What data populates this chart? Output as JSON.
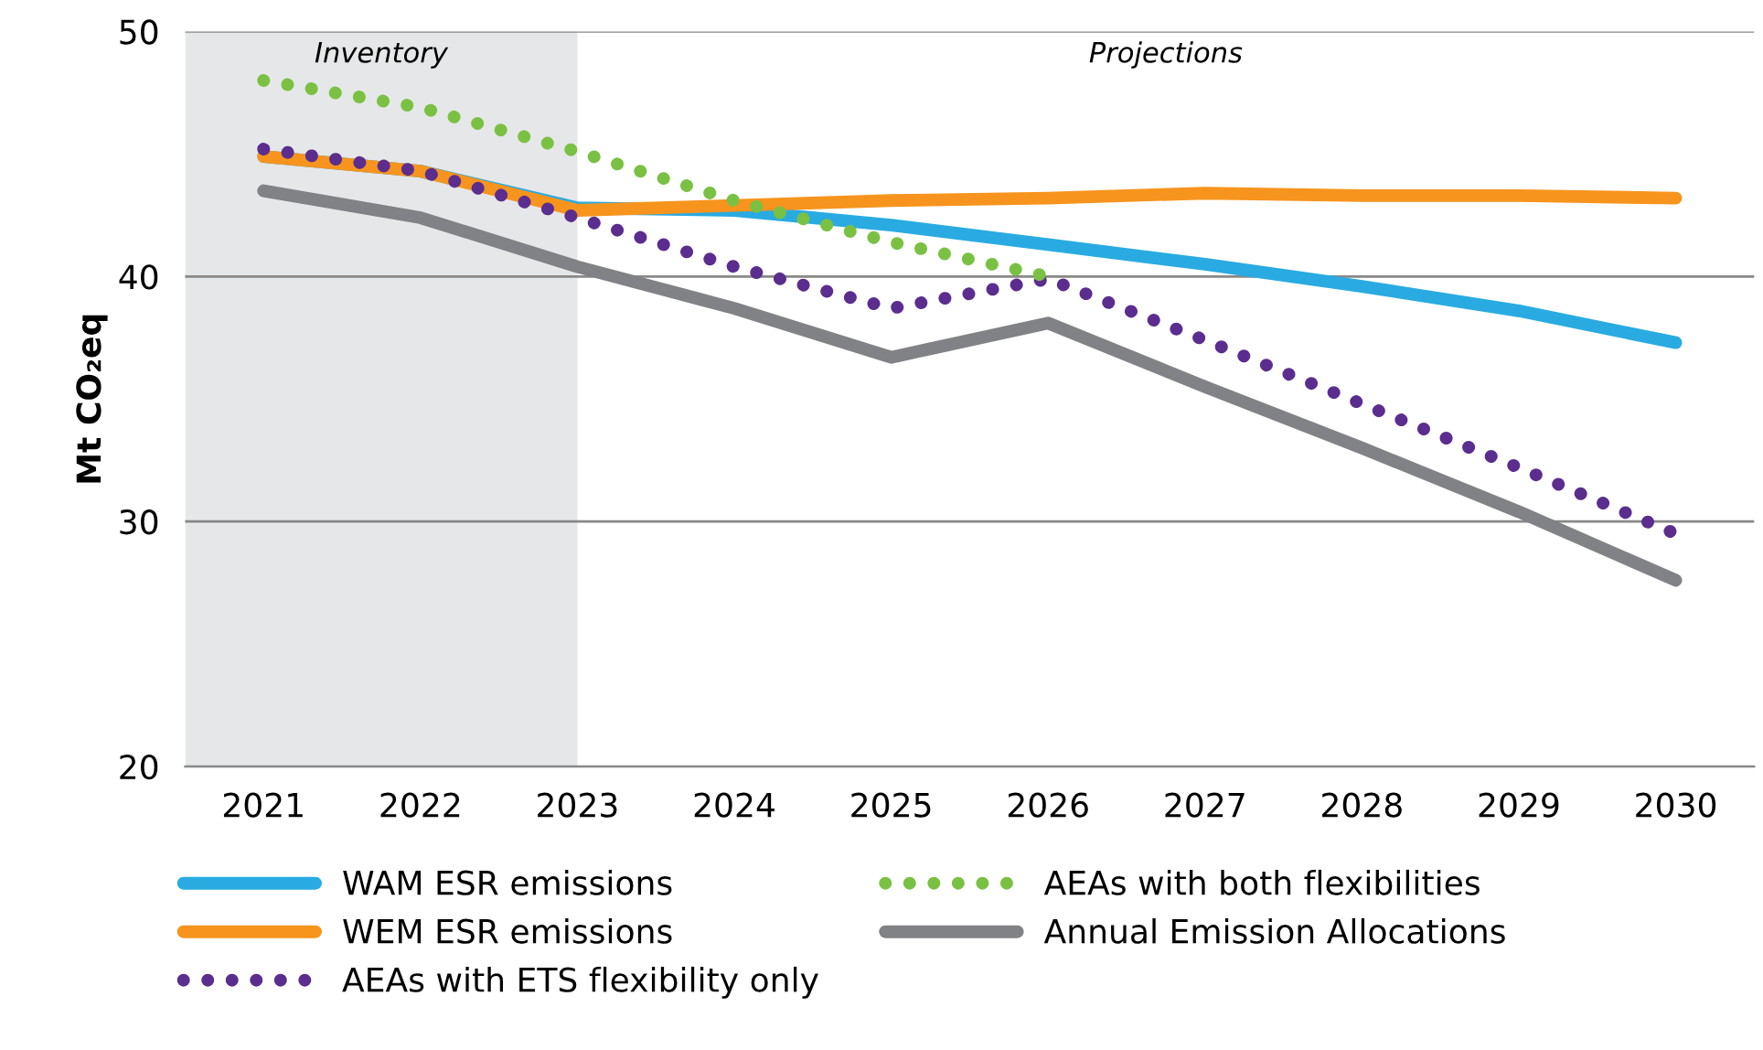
{
  "chart_data": {
    "type": "line",
    "ylabel": "Mt CO₂eq",
    "x": [
      2021,
      2022,
      2023,
      2024,
      2025,
      2026,
      2027,
      2028,
      2029,
      2030
    ],
    "xlim": [
      2020.5,
      2030.5
    ],
    "xticks": [
      2021,
      2022,
      2023,
      2024,
      2025,
      2026,
      2027,
      2028,
      2029,
      2030
    ],
    "ylim": [
      20,
      50
    ],
    "yticks": [
      20,
      30,
      40,
      50
    ],
    "grid": "y",
    "legend": "bottom",
    "bands": [
      {
        "axis": "x",
        "from": 2020.5,
        "to": 2023,
        "label": "Inventory",
        "color": "#e6e7e8"
      }
    ],
    "annotations": [
      "Projections"
    ],
    "series": [
      {
        "name": "WAM ESR emissions",
        "color": "#29abe2",
        "line_style": "solid",
        "values": [
          44.9,
          44.3,
          42.8,
          42.7,
          42.1,
          41.3,
          40.5,
          39.6,
          38.6,
          37.3
        ]
      },
      {
        "name": "WEM ESR emissions",
        "color": "#f7941d",
        "line_style": "solid",
        "values": [
          44.9,
          44.3,
          42.7,
          42.9,
          43.1,
          43.2,
          43.4,
          43.3,
          43.3,
          43.2
        ]
      },
      {
        "name": "AEAs with ETS flexibility only",
        "color": "#5b2d8e",
        "line_style": "dotted",
        "values": [
          45.2,
          44.3,
          42.4,
          40.4,
          38.7,
          39.9,
          37.4,
          34.8,
          32.2,
          29.5
        ]
      },
      {
        "name": "AEAs with both flexibilities",
        "color": "#7ac143",
        "line_style": "dotted",
        "values": [
          48.0,
          46.9,
          45.1,
          43.1,
          41.4,
          40.0,
          null,
          null,
          null,
          null
        ]
      },
      {
        "name": "Annual Emission Allocations",
        "color": "#808285",
        "line_style": "solid",
        "values": [
          43.5,
          42.4,
          40.4,
          38.7,
          36.7,
          38.1,
          35.5,
          33.0,
          30.4,
          27.6
        ]
      }
    ]
  }
}
